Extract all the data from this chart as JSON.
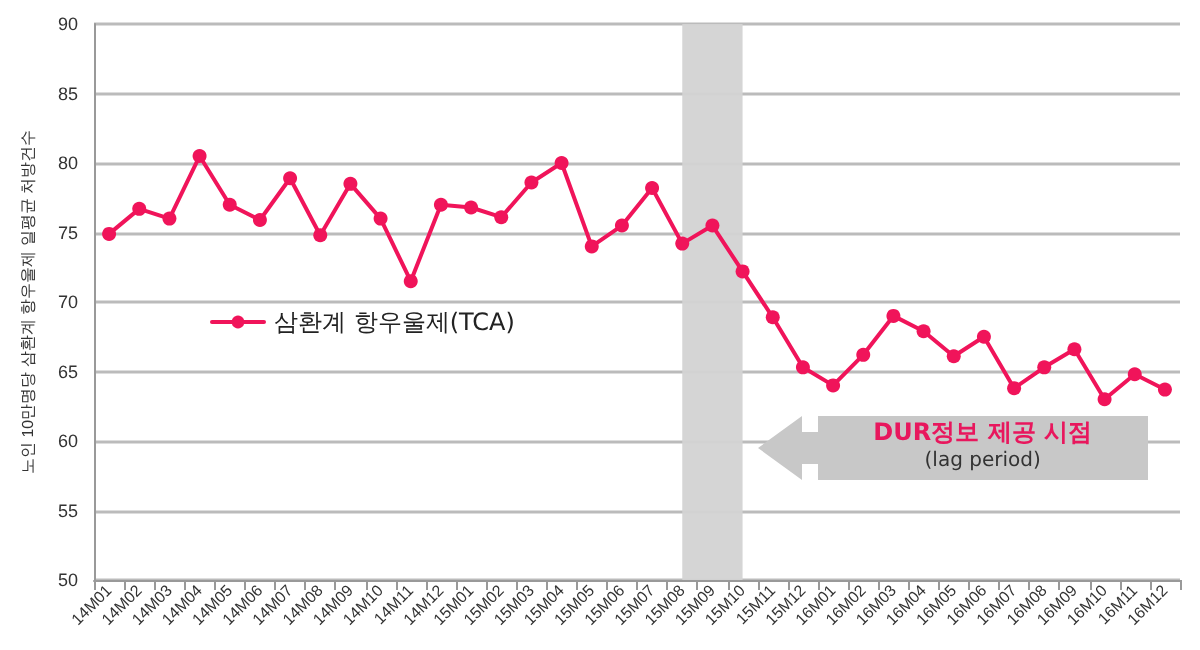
{
  "chart_data": {
    "type": "line",
    "ylabel": "노인 10만명당 삼환계 항우울제 일평균 처방건수",
    "categories": [
      "14M01",
      "14M02",
      "14M03",
      "14M04",
      "14M05",
      "14M06",
      "14M07",
      "14M08",
      "14M09",
      "14M10",
      "14M11",
      "14M12",
      "15M01",
      "15M02",
      "15M03",
      "15M04",
      "15M05",
      "15M06",
      "15M07",
      "15M08",
      "15M09",
      "15M10",
      "15M11",
      "15M12",
      "16M01",
      "16M02",
      "16M03",
      "16M04",
      "16M05",
      "16M06",
      "16M07",
      "16M08",
      "16M09",
      "16M10",
      "16M11",
      "16M12"
    ],
    "series": [
      {
        "name": "삼환계 항우울제(TCA)",
        "color": "#f0145a",
        "values": [
          74.9,
          76.7,
          76.0,
          80.5,
          77.0,
          75.9,
          78.9,
          74.8,
          78.5,
          76.0,
          71.5,
          77.0,
          76.8,
          76.1,
          78.6,
          80.0,
          74.0,
          75.5,
          78.2,
          74.2,
          75.5,
          72.2,
          68.9,
          65.3,
          64.0,
          66.2,
          69.0,
          67.9,
          66.1,
          67.5,
          63.8,
          65.3,
          66.6,
          63.0,
          64.8,
          63.7
        ]
      }
    ],
    "ylim": [
      50,
      90
    ],
    "yticks": [
      50,
      55,
      60,
      65,
      70,
      75,
      80,
      85,
      90
    ],
    "bands": [
      {
        "axis": "x",
        "from": "15M08",
        "to": "15M10",
        "color": "#d3d3d3"
      }
    ],
    "annotations": [
      "DUR정보 제공 시점",
      "(lag period)"
    ],
    "grid": "y",
    "legend": "left",
    "marker": "circle",
    "line_style": "solid"
  }
}
